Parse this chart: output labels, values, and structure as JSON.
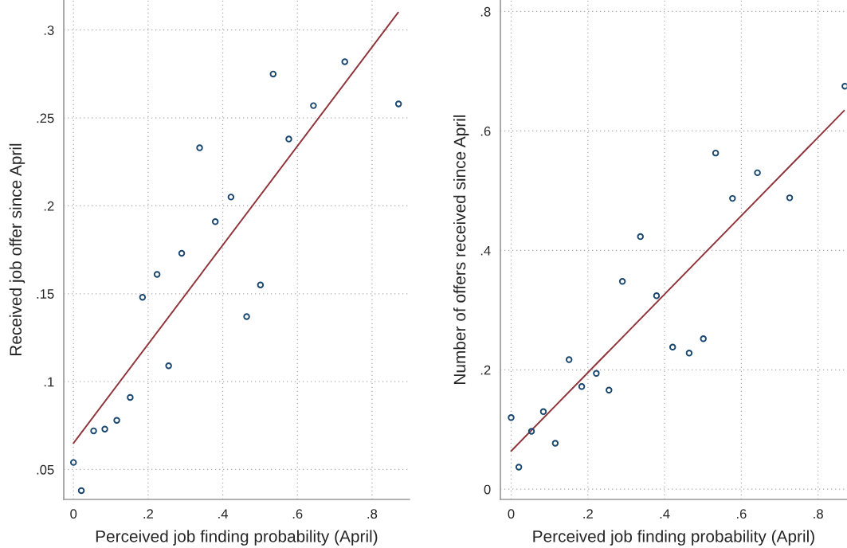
{
  "chart_data": [
    {
      "type": "scatter",
      "xlabel": "Perceived job finding probability (April)",
      "ylabel": "Received job offer since April",
      "x": [
        0,
        0.021,
        0.054,
        0.084,
        0.116,
        0.152,
        0.185,
        0.224,
        0.255,
        0.29,
        0.338,
        0.38,
        0.422,
        0.464,
        0.501,
        0.535,
        0.577,
        0.643,
        0.727,
        0.871
      ],
      "series": [
        {
          "color": "#1a476f",
          "marker": "circle",
          "values": [
            0.054,
            0.038,
            0.072,
            0.073,
            0.078,
            0.091,
            0.148,
            0.161,
            0.109,
            0.173,
            0.233,
            0.191,
            0.205,
            0.137,
            0.155,
            0.275,
            0.238,
            0.257,
            0.282,
            0.258
          ]
        },
        {
          "type": "line",
          "color": "#90353b",
          "line_style": "solid",
          "x": [
            0,
            0.87
          ],
          "values": [
            0.065,
            0.31
          ]
        }
      ],
      "xlim": [
        -0.026,
        0.9
      ],
      "ylim": [
        0.033,
        0.317
      ],
      "xticks": [
        0,
        {
          "value": 0.2,
          "label": ".2"
        },
        {
          "value": 0.4,
          "label": ".4"
        },
        {
          "value": 0.6,
          "label": ".6"
        },
        {
          "value": 0.8,
          "label": ".8"
        }
      ],
      "yticks": [
        {
          "value": 0.05,
          "label": ".05"
        },
        {
          "value": 0.1,
          "label": ".1"
        },
        {
          "value": 0.15,
          "label": ".15"
        },
        {
          "value": 0.2,
          "label": ".2"
        },
        {
          "value": 0.25,
          "label": ".25"
        },
        {
          "value": 0.3,
          "label": ".3"
        }
      ],
      "grid": true
    },
    {
      "type": "scatter",
      "xlabel": "Perceived job finding probability (April)",
      "ylabel": "Number of offers received since April",
      "x": [
        0,
        0.02,
        0.053,
        0.084,
        0.115,
        0.151,
        0.184,
        0.222,
        0.255,
        0.29,
        0.337,
        0.379,
        0.421,
        0.464,
        0.501,
        0.533,
        0.577,
        0.642,
        0.726,
        0.87
      ],
      "series": [
        {
          "color": "#1a476f",
          "marker": "circle",
          "values": [
            0.12,
            0.037,
            0.097,
            0.13,
            0.077,
            0.217,
            0.172,
            0.194,
            0.166,
            0.348,
            0.423,
            0.324,
            0.238,
            0.228,
            0.252,
            0.563,
            0.487,
            0.53,
            0.488,
            0.675
          ]
        },
        {
          "type": "line",
          "color": "#90353b",
          "line_style": "solid",
          "x": [
            0,
            0.868
          ],
          "values": [
            0.064,
            0.634
          ]
        }
      ],
      "xlim": [
        -0.028,
        0.875
      ],
      "ylim": [
        -0.017,
        0.819
      ],
      "xticks": [
        0,
        {
          "value": 0.2,
          "label": ".2"
        },
        {
          "value": 0.4,
          "label": ".4"
        },
        {
          "value": 0.6,
          "label": ".6"
        },
        {
          "value": 0.8,
          "label": ".8"
        }
      ],
      "yticks": [
        0,
        {
          "value": 0.2,
          "label": ".2"
        },
        {
          "value": 0.4,
          "label": ".4"
        },
        {
          "value": 0.6,
          "label": ".6"
        },
        {
          "value": 0.8,
          "label": ".8"
        }
      ],
      "grid": true
    }
  ]
}
